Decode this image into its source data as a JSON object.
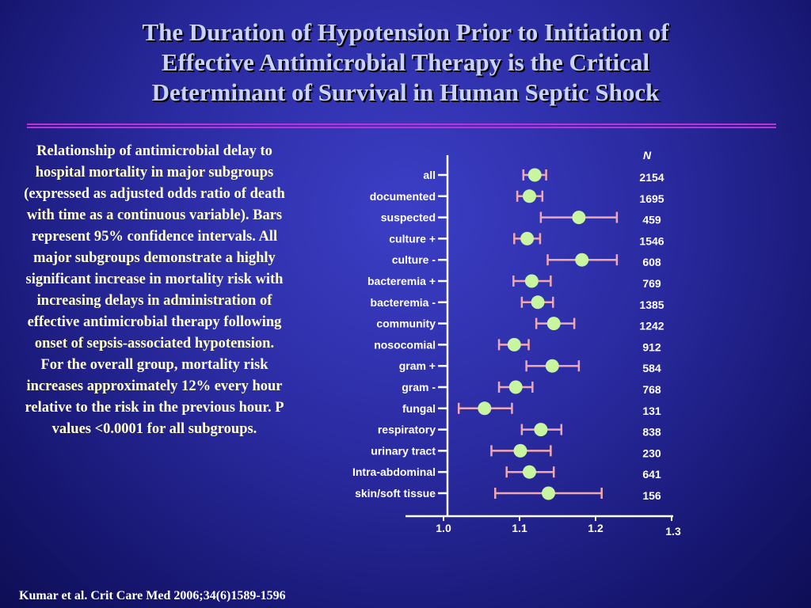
{
  "slide": {
    "title_lines": [
      "The Duration of Hypotension Prior to Initiation of",
      "Effective Antimicrobial Therapy is the Critical",
      "Determinant of Survival in Human Septic Shock"
    ],
    "description": "Relationship of antimicrobial delay to hospital mortality in major subgroups (expressed as adjusted odds ratio of death with time as a continuous variable).  Bars represent 95% confidence intervals.  All major subgroups demonstrate a highly significant increase in mortality risk with increasing delays in administration of effective antimicrobial therapy following onset of sepsis-associated hypotension.  For the overall group, mortality risk increases approximately 12% every hour relative to the risk in the previous hour.  P values <0.0001 for all subgroups.",
    "citation": "Kumar et al. Crit Care Med 2006;34(6)1589-1596"
  },
  "colors": {
    "point": "#c8f5a0",
    "interval": "#f0a8b0",
    "axis": "#ffffff",
    "label": "#ffffff",
    "title": "#c9d3ff",
    "description": "#ffffc8",
    "rule": "#c030d8"
  },
  "chart_data": {
    "type": "forest",
    "n_header": "N",
    "xlim": [
      1.0,
      1.3
    ],
    "xticks": [
      1.0,
      1.1,
      1.2,
      1.3
    ],
    "xtick_labels": [
      "1.0",
      "1.1",
      "1.2",
      "1.3"
    ],
    "rows": [
      {
        "label": "all",
        "or": 1.12,
        "lo": 1.105,
        "hi": 1.135,
        "n": "2154"
      },
      {
        "label": "documented",
        "or": 1.113,
        "lo": 1.097,
        "hi": 1.13,
        "n": "1695"
      },
      {
        "label": "suspected",
        "or": 1.178,
        "lo": 1.128,
        "hi": 1.228,
        "n": "459"
      },
      {
        "label": "culture +",
        "or": 1.11,
        "lo": 1.093,
        "hi": 1.127,
        "n": "1546"
      },
      {
        "label": "culture -",
        "or": 1.182,
        "lo": 1.137,
        "hi": 1.228,
        "n": "608"
      },
      {
        "label": "bacteremia +",
        "or": 1.116,
        "lo": 1.092,
        "hi": 1.141,
        "n": "769"
      },
      {
        "label": "bacteremia -",
        "or": 1.124,
        "lo": 1.103,
        "hi": 1.144,
        "n": "1385"
      },
      {
        "label": "community",
        "or": 1.145,
        "lo": 1.122,
        "hi": 1.172,
        "n": "1242"
      },
      {
        "label": "nosocomial",
        "or": 1.093,
        "lo": 1.073,
        "hi": 1.112,
        "n": "912"
      },
      {
        "label": "gram +",
        "or": 1.143,
        "lo": 1.109,
        "hi": 1.178,
        "n": "584"
      },
      {
        "label": "gram -",
        "or": 1.095,
        "lo": 1.073,
        "hi": 1.117,
        "n": "768"
      },
      {
        "label": "fungal",
        "or": 1.054,
        "lo": 1.02,
        "hi": 1.09,
        "n": "131"
      },
      {
        "label": "respiratory",
        "or": 1.128,
        "lo": 1.103,
        "hi": 1.155,
        "n": "838"
      },
      {
        "label": "urinary tract",
        "or": 1.101,
        "lo": 1.063,
        "hi": 1.141,
        "n": "230"
      },
      {
        "label": "Intra-abdominal",
        "or": 1.113,
        "lo": 1.083,
        "hi": 1.145,
        "n": "641"
      },
      {
        "label": "skin/soft tissue",
        "or": 1.138,
        "lo": 1.068,
        "hi": 1.208,
        "n": "156"
      }
    ]
  }
}
